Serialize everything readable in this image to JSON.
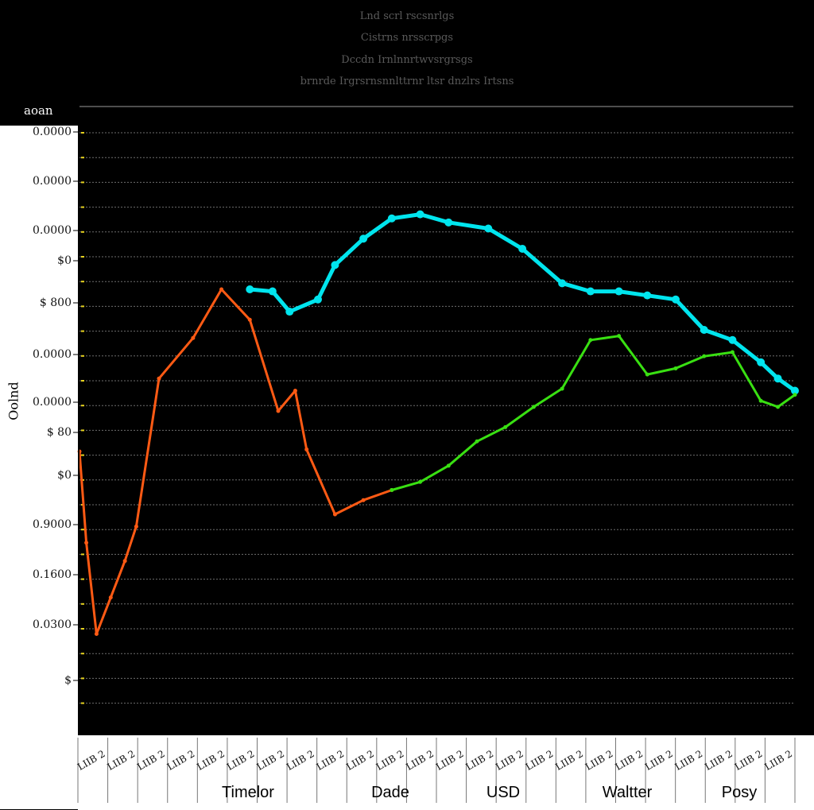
{
  "header": {
    "lines": [
      "Lnd scrl rscsnrlgs",
      "Cistrns nrsscrpgs",
      "Dccdn Irnlnnrtwvsrgrsgs",
      "brnrde Irgrsrnsnnlttrnr ltsr dnzlrs Irtsns"
    ]
  },
  "corner_label": "aoan",
  "chart_data": {
    "type": "line",
    "title": "",
    "ylabel": "Oolnd",
    "ytick_labels": [
      "0.0000",
      "0.0000",
      "0.0000",
      "$0",
      "$ 800",
      "0.0000",
      "0.0000",
      "$ 80",
      "$0",
      "0.9000",
      "0.1600",
      "0.0300",
      "$"
    ],
    "xtick_labels": [
      "LIIB 2",
      "LIIB 2",
      "LIIB 2",
      "LIIB 2",
      "LIIB 2",
      "LIIB 2",
      "LIIB 2",
      "LIIB 2",
      "LIIB 2",
      "LIIB 2",
      "LIIB 2",
      "LIIB 2",
      "LIIB 2",
      "LIIB 2",
      "LIIB 2",
      "LIIB 2",
      "LIIB 2",
      "LIIB 2",
      "LIIB 2",
      "LIIB 2",
      "LIIB 2",
      "LIIB 2",
      "LIIB 2",
      "LIIB 2"
    ],
    "group_labels": [
      "Timelor",
      "Dade",
      "USD",
      "Waltter",
      "Posy"
    ],
    "grid": true,
    "ylim": [
      0,
      25
    ],
    "series": [
      {
        "color": "#ff5a14",
        "x": [
          0,
          1.2,
          3,
          5.5,
          8,
          10,
          14,
          20,
          25,
          30,
          35,
          38,
          40,
          45,
          50,
          55
        ],
        "y": [
          14,
          9.5,
          5,
          6.8,
          8.6,
          10.3,
          17.6,
          19.6,
          22,
          20.5,
          16,
          17,
          14.1,
          10.9,
          11.6,
          12.1
        ]
      },
      {
        "color": "#00e5ee",
        "x": [
          30,
          34,
          37,
          42,
          45,
          50,
          55,
          60,
          65,
          72,
          78,
          85,
          90,
          95,
          100,
          105,
          110,
          115,
          120,
          123,
          126
        ],
        "y": [
          22,
          21.9,
          20.9,
          21.5,
          23.2,
          24.5,
          25.5,
          25.7,
          25.3,
          25,
          24,
          22.3,
          21.9,
          21.9,
          21.7,
          21.5,
          20,
          19.5,
          18.4,
          17.6,
          17
        ]
      },
      {
        "color": "#39e012",
        "x": [
          55,
          60,
          65,
          70,
          75,
          80,
          85,
          90,
          95,
          100,
          105,
          110,
          115,
          120,
          123,
          126
        ],
        "y": [
          12.1,
          12.5,
          13.3,
          14.5,
          15.2,
          16.2,
          17.1,
          19.5,
          19.7,
          17.8,
          18.1,
          18.7,
          18.9,
          16.5,
          16.2,
          16.8
        ]
      }
    ]
  }
}
